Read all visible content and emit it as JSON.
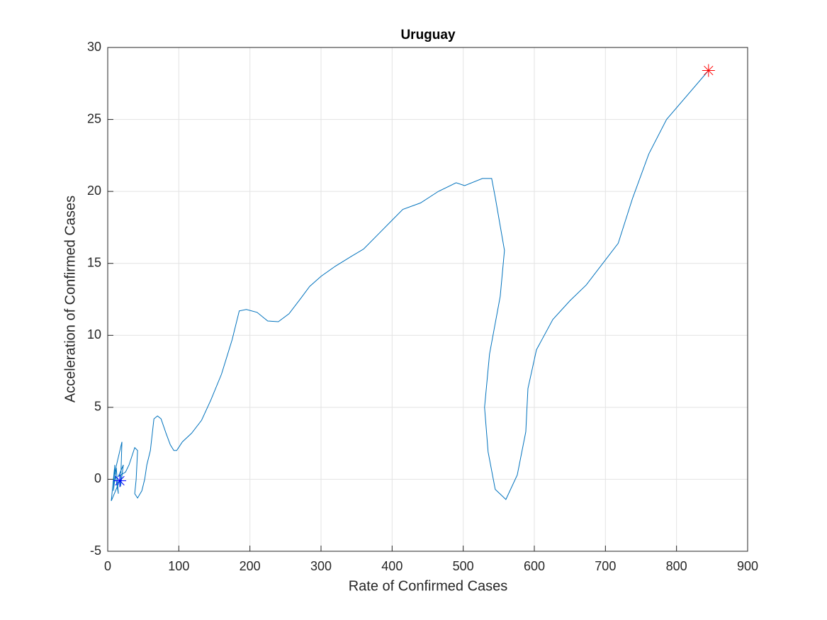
{
  "chart_data": {
    "type": "line",
    "title": "Uruguay",
    "xlabel": "Rate of Confirmed Cases",
    "ylabel": "Acceleration of Confirmed Cases",
    "x": [
      17,
      5,
      10,
      8,
      12,
      15,
      10,
      20,
      18,
      22,
      15,
      25,
      30,
      38,
      42,
      40,
      38,
      42,
      48,
      52,
      55,
      60,
      65,
      70,
      75,
      82,
      88,
      93,
      97,
      105,
      118,
      132,
      145,
      160,
      175,
      185,
      195,
      210,
      225,
      240,
      255,
      272,
      284,
      300,
      320,
      343,
      360,
      380,
      400,
      415,
      440,
      465,
      490,
      502,
      527,
      540,
      545,
      558,
      552,
      537,
      530,
      535,
      545,
      560,
      576,
      588,
      591,
      603,
      626,
      650,
      673,
      718,
      738,
      761,
      786,
      845
    ],
    "series": [
      {
        "color": "#0072bd",
        "values": [
          -0.1,
          -1.5,
          1,
          -0.8,
          0.8,
          -1,
          0.5,
          2.6,
          -0.5,
          1,
          0.2,
          0.5,
          1,
          2.2,
          2,
          0,
          -1,
          -1.3,
          -0.8,
          0,
          1,
          2,
          4.2,
          4.4,
          4.2,
          3.2,
          2.4,
          2,
          2,
          2.6,
          3.2,
          4.1,
          5.5,
          7.3,
          9.7,
          11.7,
          11.8,
          11.6,
          11,
          10.95,
          11.5,
          12.6,
          13.4,
          14.1,
          14.8,
          15.5,
          16,
          17,
          18,
          18.75,
          19.2,
          20,
          20.6,
          20.4,
          20.9,
          20.9,
          19.6,
          15.9,
          12.7,
          8.7,
          5,
          1.9,
          -0.7,
          -1.4,
          0.3,
          3.3,
          6.3,
          9,
          11.1,
          12.4,
          13.5,
          16.4,
          19.5,
          22.6,
          25,
          28.4
        ]
      }
    ],
    "markers": [
      {
        "x": 17,
        "y": -0.1,
        "color": "#0000ff"
      },
      {
        "x": 845,
        "y": 28.4,
        "color": "#ff0000"
      }
    ],
    "xlim": [
      0,
      900
    ],
    "xticks": [
      0,
      100,
      200,
      300,
      400,
      500,
      600,
      700,
      800,
      900
    ],
    "ylim": [
      -5,
      30
    ],
    "yticks": [
      -5,
      0,
      5,
      10,
      15,
      20,
      25,
      30
    ],
    "grid": true
  }
}
